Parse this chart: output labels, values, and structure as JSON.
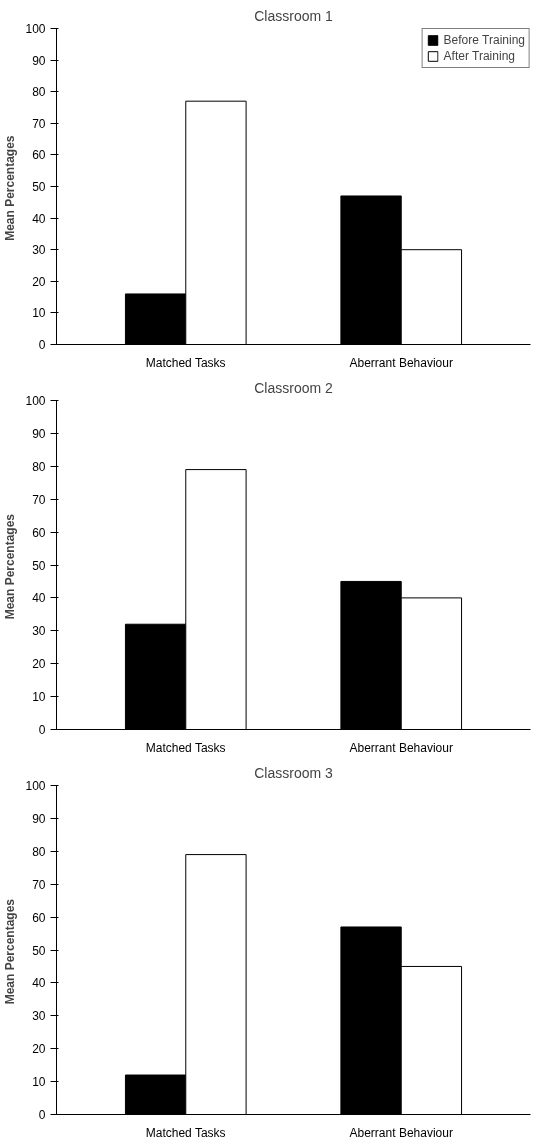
{
  "chart_data": [
    {
      "type": "bar",
      "title": "Classroom 1",
      "ylabel": "Mean  Percentages",
      "categories": [
        "Matched Tasks",
        "Aberrant Behaviour"
      ],
      "series": [
        {
          "name": "Before Training",
          "color": "#000000",
          "values": [
            16,
            47
          ]
        },
        {
          "name": "After Training",
          "color": "#ffffff",
          "values": [
            77,
            30
          ]
        }
      ],
      "ylim": [
        0,
        100
      ],
      "yticks": [
        0,
        10,
        20,
        30,
        40,
        50,
        60,
        70,
        80,
        90,
        100
      ],
      "grid": false,
      "legend": "top right"
    },
    {
      "type": "bar",
      "title": "Classroom 2",
      "ylabel": "Mean  Percentages",
      "categories": [
        "Matched Tasks",
        "Aberrant Behaviour"
      ],
      "series": [
        {
          "color": "#000000",
          "values": [
            32,
            45
          ]
        },
        {
          "color": "#ffffff",
          "values": [
            79,
            40
          ]
        }
      ],
      "ylim": [
        0,
        100
      ],
      "yticks": [
        0,
        10,
        20,
        30,
        40,
        50,
        60,
        70,
        80,
        90,
        100
      ],
      "grid": false
    },
    {
      "type": "bar",
      "title": "Classroom 3",
      "ylabel": "Mean  Percentages",
      "categories": [
        "Matched Tasks",
        "Aberrant Behaviour"
      ],
      "series": [
        {
          "color": "#000000",
          "values": [
            12,
            57
          ]
        },
        {
          "color": "#ffffff",
          "values": [
            79,
            45
          ]
        }
      ],
      "ylim": [
        0,
        100
      ],
      "yticks": [
        0,
        10,
        20,
        30,
        40,
        50,
        60,
        70,
        80,
        90,
        100
      ],
      "grid": false
    }
  ]
}
